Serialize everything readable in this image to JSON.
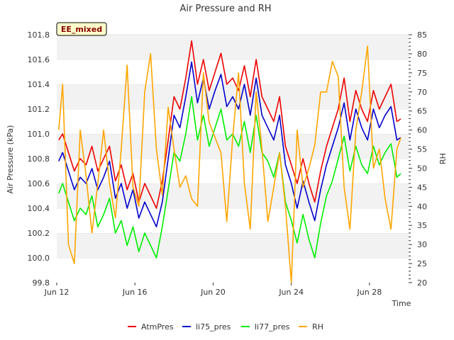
{
  "chart_data": {
    "type": "line",
    "title": "Air Pressure and RH",
    "badge": "EE_mixed",
    "xlabel": "Time",
    "ylabel_left": "Air Pressure (kPa)",
    "ylabel_right": "RH",
    "x_ticks": [
      "Jun 12",
      "Jun 16",
      "Jun 20",
      "Jun 24",
      "Jun 28"
    ],
    "x_tick_days": [
      12,
      16,
      20,
      24,
      28
    ],
    "xlim_days": [
      12,
      30
    ],
    "ylim_left": [
      99.8,
      101.8
    ],
    "ylim_right": [
      20,
      85
    ],
    "y_ticks_left": [
      "99.8",
      "100.0",
      "100.2",
      "100.4",
      "100.6",
      "100.8",
      "101.0",
      "101.2",
      "101.4",
      "101.6",
      "101.8"
    ],
    "y_ticks_right": [
      "20",
      "25",
      "30",
      "35",
      "40",
      "45",
      "50",
      "55",
      "60",
      "65",
      "70",
      "75",
      "80",
      "85"
    ],
    "grid": "horizontal bands",
    "legend_position": "bottom-center",
    "series": [
      {
        "name": "AtmPres",
        "axis": "left",
        "color": "#ee0000",
        "x": [
          12.1,
          12.3,
          12.6,
          12.9,
          13.2,
          13.5,
          13.8,
          14.1,
          14.4,
          14.7,
          15.0,
          15.3,
          15.6,
          15.9,
          16.2,
          16.5,
          16.8,
          17.1,
          17.4,
          17.7,
          18.0,
          18.3,
          18.6,
          18.9,
          19.2,
          19.5,
          19.8,
          20.1,
          20.4,
          20.7,
          21.0,
          21.3,
          21.6,
          21.9,
          22.2,
          22.5,
          22.8,
          23.1,
          23.4,
          23.7,
          24.0,
          24.3,
          24.6,
          24.9,
          25.2,
          25.5,
          25.8,
          26.1,
          26.4,
          26.7,
          27.0,
          27.3,
          27.6,
          27.9,
          28.2,
          28.5,
          28.8,
          29.1,
          29.4,
          29.6
        ],
        "y": [
          100.95,
          101.0,
          100.85,
          100.7,
          100.8,
          100.75,
          100.9,
          100.7,
          100.8,
          100.9,
          100.62,
          100.75,
          100.55,
          100.68,
          100.45,
          100.6,
          100.5,
          100.4,
          100.62,
          100.95,
          101.3,
          101.2,
          101.45,
          101.75,
          101.4,
          101.6,
          101.35,
          101.5,
          101.65,
          101.4,
          101.45,
          101.35,
          101.55,
          101.3,
          101.6,
          101.3,
          101.2,
          101.1,
          101.3,
          100.9,
          100.75,
          100.6,
          100.8,
          100.6,
          100.45,
          100.7,
          100.9,
          101.05,
          101.2,
          101.45,
          101.1,
          101.35,
          101.2,
          101.1,
          101.35,
          101.2,
          101.3,
          101.4,
          101.1,
          101.12
        ]
      },
      {
        "name": "li75_pres",
        "axis": "left",
        "color": "#0000cc",
        "x": [
          12.1,
          12.3,
          12.6,
          12.9,
          13.2,
          13.5,
          13.8,
          14.1,
          14.4,
          14.7,
          15.0,
          15.3,
          15.6,
          15.9,
          16.2,
          16.5,
          16.8,
          17.1,
          17.4,
          17.7,
          18.0,
          18.3,
          18.6,
          18.9,
          19.2,
          19.5,
          19.8,
          20.1,
          20.4,
          20.7,
          21.0,
          21.3,
          21.6,
          21.9,
          22.2,
          22.5,
          22.8,
          23.1,
          23.4,
          23.7,
          24.0,
          24.3,
          24.6,
          24.9,
          25.2,
          25.5,
          25.8,
          26.1,
          26.4,
          26.7,
          27.0,
          27.3,
          27.6,
          27.9,
          28.2,
          28.5,
          28.8,
          29.1,
          29.4,
          29.6
        ],
        "y": [
          100.78,
          100.85,
          100.7,
          100.55,
          100.65,
          100.6,
          100.72,
          100.55,
          100.65,
          100.78,
          100.48,
          100.6,
          100.4,
          100.55,
          100.32,
          100.45,
          100.35,
          100.25,
          100.45,
          100.8,
          101.15,
          101.05,
          101.3,
          101.58,
          101.25,
          101.45,
          101.2,
          101.35,
          101.48,
          101.22,
          101.3,
          101.2,
          101.4,
          101.15,
          101.45,
          101.15,
          101.05,
          100.95,
          101.15,
          100.75,
          100.6,
          100.4,
          100.62,
          100.45,
          100.3,
          100.55,
          100.75,
          100.9,
          101.05,
          101.25,
          100.95,
          101.2,
          101.05,
          100.95,
          101.2,
          101.05,
          101.15,
          101.22,
          100.95,
          100.97
        ]
      },
      {
        "name": "li77_pres",
        "axis": "left",
        "color": "#00ee00",
        "x": [
          12.1,
          12.3,
          12.6,
          12.9,
          13.2,
          13.5,
          13.8,
          14.1,
          14.4,
          14.7,
          15.0,
          15.3,
          15.6,
          15.9,
          16.2,
          16.5,
          16.8,
          17.1,
          17.4,
          17.7,
          18.0,
          18.3,
          18.6,
          18.9,
          19.2,
          19.5,
          19.8,
          20.1,
          20.4,
          20.7,
          21.0,
          21.3,
          21.6,
          21.9,
          22.2,
          22.5,
          22.8,
          23.1,
          23.4,
          23.7,
          24.0,
          24.3,
          24.6,
          24.9,
          25.2,
          25.5,
          25.8,
          26.1,
          26.4,
          26.7,
          27.0,
          27.3,
          27.6,
          27.9,
          28.2,
          28.5,
          28.8,
          29.1,
          29.4,
          29.6
        ],
        "y": [
          100.52,
          100.6,
          100.45,
          100.3,
          100.4,
          100.35,
          100.5,
          100.25,
          100.35,
          100.48,
          100.2,
          100.3,
          100.1,
          100.25,
          100.05,
          100.2,
          100.1,
          100.0,
          100.25,
          100.55,
          100.85,
          100.78,
          101.0,
          101.3,
          100.95,
          101.15,
          100.9,
          101.05,
          101.2,
          100.95,
          101.0,
          100.9,
          101.1,
          100.85,
          101.15,
          100.85,
          100.78,
          100.65,
          100.85,
          100.45,
          100.3,
          100.12,
          100.35,
          100.15,
          100.0,
          100.28,
          100.5,
          100.62,
          100.8,
          100.98,
          100.7,
          100.9,
          100.75,
          100.68,
          100.9,
          100.75,
          100.85,
          100.92,
          100.65,
          100.68
        ]
      },
      {
        "name": "RH",
        "axis": "right",
        "color": "#ffa500",
        "x": [
          12.1,
          12.3,
          12.6,
          12.9,
          13.2,
          13.5,
          13.8,
          14.1,
          14.4,
          14.7,
          15.0,
          15.3,
          15.6,
          15.9,
          16.2,
          16.5,
          16.8,
          17.1,
          17.4,
          17.7,
          18.0,
          18.3,
          18.6,
          18.9,
          19.2,
          19.5,
          19.8,
          20.1,
          20.4,
          20.7,
          21.0,
          21.3,
          21.6,
          21.9,
          22.2,
          22.5,
          22.8,
          23.1,
          23.4,
          23.7,
          24.0,
          24.3,
          24.6,
          24.9,
          25.2,
          25.5,
          25.8,
          26.1,
          26.4,
          26.7,
          27.0,
          27.3,
          27.6,
          27.9,
          28.2,
          28.5,
          28.8,
          29.1,
          29.4,
          29.6
        ],
        "y": [
          60,
          72,
          30,
          25,
          60,
          48,
          33,
          46,
          60,
          46,
          37,
          55,
          77,
          45,
          40,
          70,
          80,
          55,
          43,
          66,
          55,
          45,
          48,
          42,
          40,
          75,
          62,
          58,
          54,
          36,
          58,
          75,
          46,
          34,
          70,
          55,
          36,
          45,
          54,
          40,
          20,
          60,
          45,
          50,
          56,
          70,
          70,
          78,
          74,
          45,
          34,
          60,
          70,
          82,
          50,
          55,
          42,
          34,
          55,
          58
        ]
      }
    ]
  }
}
